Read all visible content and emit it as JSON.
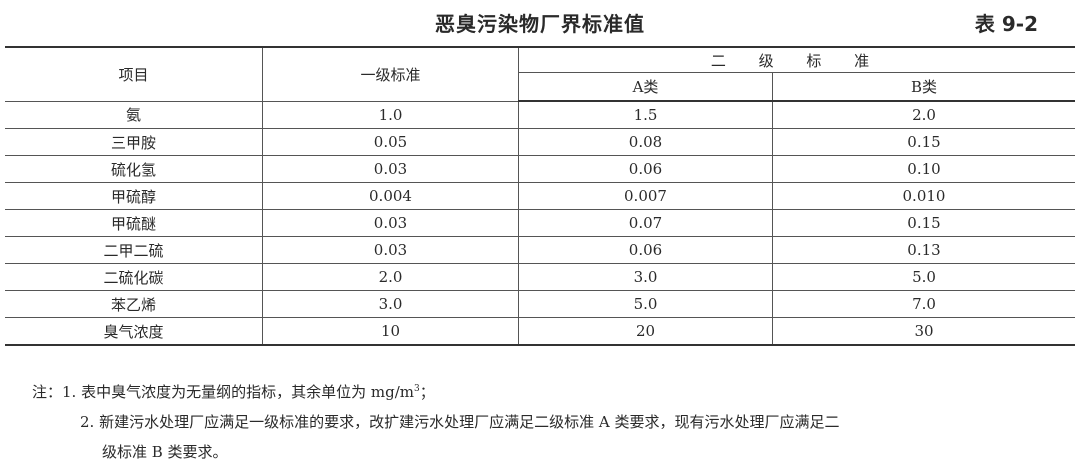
{
  "title": "恶臭污染物厂界标准值",
  "table_number": "表 9-2",
  "header": {
    "item": "项目",
    "grade1": "一级标准",
    "grade2": "二 级 标 准",
    "class_a": "A类",
    "class_b": "B类"
  },
  "rows": [
    {
      "item": "氨",
      "g1": "1.0",
      "a": "1.5",
      "b": "2.0"
    },
    {
      "item": "三甲胺",
      "g1": "0.05",
      "a": "0.08",
      "b": "0.15"
    },
    {
      "item": "硫化氢",
      "g1": "0.03",
      "a": "0.06",
      "b": "0.10"
    },
    {
      "item": "甲硫醇",
      "g1": "0.004",
      "a": "0.007",
      "b": "0.010"
    },
    {
      "item": "甲硫醚",
      "g1": "0.03",
      "a": "0.07",
      "b": "0.15"
    },
    {
      "item": "二甲二硫",
      "g1": "0.03",
      "a": "0.06",
      "b": "0.13"
    },
    {
      "item": "二硫化碳",
      "g1": "2.0",
      "a": "3.0",
      "b": "5.0"
    },
    {
      "item": "苯乙烯",
      "g1": "3.0",
      "a": "5.0",
      "b": "7.0"
    },
    {
      "item": "臭气浓度",
      "g1": "10",
      "a": "20",
      "b": "30"
    }
  ],
  "notes": {
    "prefix": "注：",
    "note1": "1. 表中臭气浓度为无量纲的指标，其余单位为 mg/m",
    "note1_sup": "3",
    "note1_end": "；",
    "note2_line1": "2. 新建污水处理厂应满足一级标准的要求，改扩建污水处理厂应满足二级标准 A 类要求，现有污水处理厂应满足二",
    "note2_line2": "级标准 B 类要求。"
  }
}
